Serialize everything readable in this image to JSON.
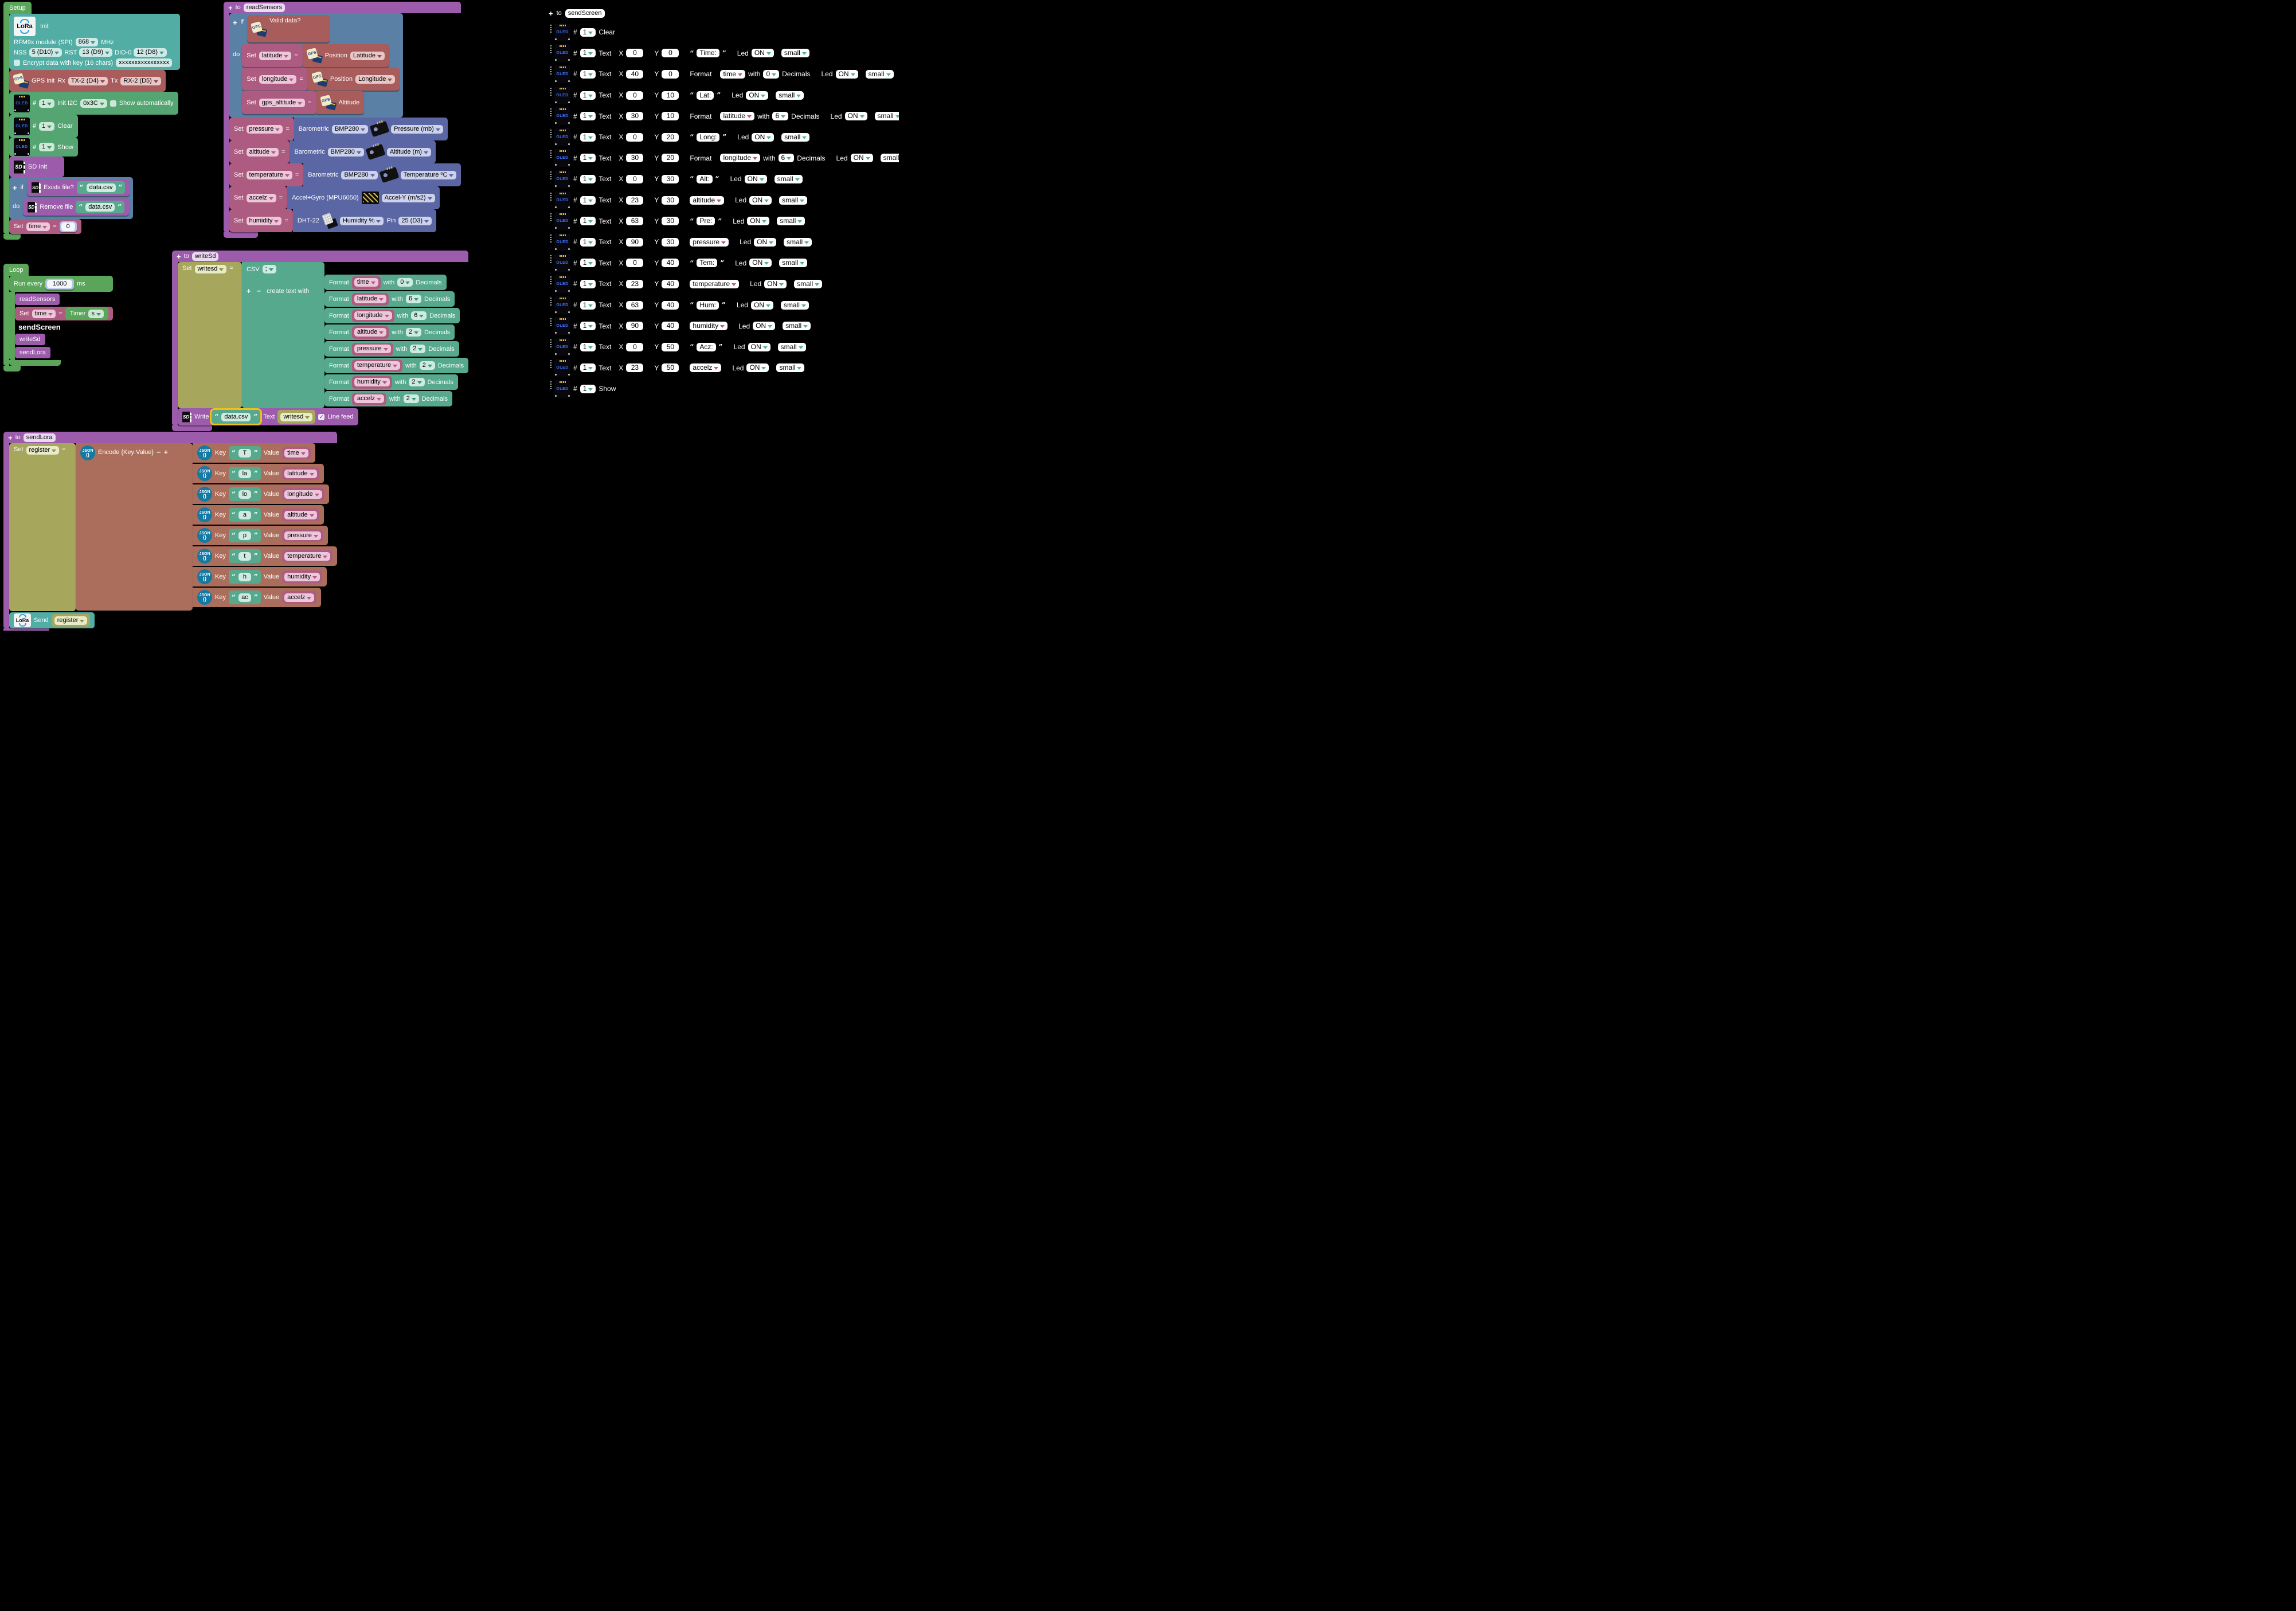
{
  "common": {
    "plus": "+",
    "minus": "−",
    "to": "to",
    "if": "if",
    "do": "do",
    "set": "Set",
    "eq": "=",
    "hash": "#",
    "qo": "“",
    "qc": "”",
    "check": "✓"
  },
  "icons": {
    "lora": "LoRa",
    "oled": "OLED",
    "gps": "GPS",
    "sd": "SD",
    "json_top": "JSON",
    "json_bottom": "{}"
  },
  "setup": {
    "tab": "Setup",
    "lora_init": {
      "title": "Init",
      "module": "RFM9x module (SPI)",
      "freq": "868",
      "freq_unit": "MHz",
      "nss_label": "NSS",
      "nss": "5 (D10)",
      "rst_label": "RST",
      "rst": "13 (D9)",
      "dio_label": "DIO-0",
      "dio": "12 (D8)",
      "encrypt_label": "Encrypt data with key (16 chars)",
      "key": "xxxxxxxxxxxxxxxx"
    },
    "gps_init": {
      "label": "GPS init",
      "rx_label": "Rx",
      "rx": "TX-2 (D4)",
      "tx_label": "Tx",
      "tx": "RX-2 (D5)"
    },
    "oled_init": {
      "num": "1",
      "label": "Init I2C",
      "addr": "0x3C",
      "show_auto": "Show automatically"
    },
    "oled_clear": {
      "num": "1",
      "label": "Clear"
    },
    "oled_show": {
      "num": "1",
      "label": "Show"
    },
    "sd_init_label": "SD Init",
    "exists_label": "Exists file?",
    "exists_file": "data.csv",
    "remove_label": "Remove file",
    "remove_file": "data.csv",
    "set_time": {
      "var": "time",
      "value": "0"
    }
  },
  "loop": {
    "tab": "Loop",
    "run_label": "Run every",
    "interval": "1000",
    "unit": "ms",
    "call_read": "readSensors",
    "call_screen": "sendScreen",
    "call_sd": "writeSd",
    "call_lora": "sendLora",
    "set_time": {
      "var": "time",
      "timer": "Timer",
      "unit": "s"
    }
  },
  "read_sensors": {
    "name": "readSensors",
    "valid_label": "Valid data?",
    "gps_sets": [
      {
        "var": "latitude",
        "src": "Position",
        "opt": "Latitude"
      },
      {
        "var": "longitude",
        "src": "Position",
        "opt": "Longitude"
      },
      {
        "var": "gps_altitude",
        "src": "Altitude",
        "opt": ""
      }
    ],
    "sensor_sets": [
      {
        "var": "pressure",
        "dev": "Barometric",
        "model": "BMP280",
        "opt": "Pressure (mb)",
        "pin_label": "",
        "pin": "",
        "icon": "bmp"
      },
      {
        "var": "altitude",
        "dev": "Barometric",
        "model": "BMP280",
        "opt": "Altitude (m)",
        "pin_label": "",
        "pin": "",
        "icon": "bmp"
      },
      {
        "var": "temperature",
        "dev": "Barometric",
        "model": "BMP280",
        "opt": "Temperature ºC",
        "pin_label": "",
        "pin": "",
        "icon": "bmp"
      },
      {
        "var": "accelz",
        "dev": "Accel+Gyro (MPU6050)",
        "model": "",
        "opt": "Accel-Y (m/s2)",
        "pin_label": "",
        "pin": "",
        "icon": "mpu"
      },
      {
        "var": "humidity",
        "dev": "DHT-22",
        "model": "",
        "opt": "Humidity %",
        "pin_label": "Pin",
        "pin": "25 (D3)",
        "icon": "dht"
      }
    ]
  },
  "write_sd": {
    "name": "writeSd",
    "set_var": "writesd",
    "csv_label": "CSV",
    "csv_sep": ";",
    "create_label": "create text with",
    "format_label": "Format",
    "with_label": "with",
    "decimals_label": "Decimals",
    "formats": [
      {
        "var": "time",
        "dec": "0"
      },
      {
        "var": "latitude",
        "dec": "6"
      },
      {
        "var": "longitude",
        "dec": "6"
      },
      {
        "var": "altitude",
        "dec": "2"
      },
      {
        "var": "pressure",
        "dec": "2"
      },
      {
        "var": "temperature",
        "dec": "2"
      },
      {
        "var": "humidity",
        "dec": "2"
      },
      {
        "var": "accelz",
        "dec": "2"
      }
    ],
    "write_label": "Write",
    "file": "data.csv",
    "text_label": "Text",
    "text_var": "writesd",
    "linefeed_label": "Line feed"
  },
  "send_lora": {
    "name": "sendLora",
    "set_var": "register",
    "encode_label": "Encode {Key:Value}",
    "key_label": "Key",
    "value_label": "Value",
    "pairs": [
      {
        "key": "T",
        "var": "time"
      },
      {
        "key": "la",
        "var": "latitude"
      },
      {
        "key": "lo",
        "var": "longitude"
      },
      {
        "key": "a",
        "var": "altitude"
      },
      {
        "key": "p",
        "var": "pressure"
      },
      {
        "key": "t",
        "var": "temperature"
      },
      {
        "key": "h",
        "var": "humidity"
      },
      {
        "key": "ac",
        "var": "accelz"
      }
    ],
    "send_label": "Send",
    "send_var": "register"
  },
  "send_screen": {
    "name": "sendScreen",
    "labels": {
      "text": "Text",
      "x": "X",
      "y": "Y",
      "led": "Led",
      "on": "ON",
      "size": "small",
      "format": "Format",
      "with": "with",
      "decimals": "Decimals",
      "clear": "Clear",
      "show": "Show"
    },
    "rows": [
      {
        "type": "clear",
        "num": "1",
        "x": "",
        "y": "",
        "str": "",
        "var": "",
        "dec": ""
      },
      {
        "type": "str",
        "num": "1",
        "x": "0",
        "y": "0",
        "str": "Time:",
        "var": "",
        "dec": ""
      },
      {
        "type": "fmt",
        "num": "1",
        "x": "40",
        "y": "0",
        "str": "",
        "var": "time",
        "dec": "0"
      },
      {
        "type": "str",
        "num": "1",
        "x": "0",
        "y": "10",
        "str": "Lat:",
        "var": "",
        "dec": ""
      },
      {
        "type": "fmt",
        "num": "1",
        "x": "30",
        "y": "10",
        "str": "",
        "var": "latitude",
        "dec": "6"
      },
      {
        "type": "str",
        "num": "1",
        "x": "0",
        "y": "20",
        "str": "Long:",
        "var": "",
        "dec": ""
      },
      {
        "type": "fmt",
        "num": "1",
        "x": "30",
        "y": "20",
        "str": "",
        "var": "longitude",
        "dec": "6"
      },
      {
        "type": "str",
        "num": "1",
        "x": "0",
        "y": "30",
        "str": "Alt:",
        "var": "",
        "dec": ""
      },
      {
        "type": "var",
        "num": "1",
        "x": "23",
        "y": "30",
        "str": "",
        "var": "altitude",
        "dec": ""
      },
      {
        "type": "str",
        "num": "1",
        "x": "63",
        "y": "30",
        "str": "Pre:",
        "var": "",
        "dec": ""
      },
      {
        "type": "var",
        "num": "1",
        "x": "90",
        "y": "30",
        "str": "",
        "var": "pressure",
        "dec": ""
      },
      {
        "type": "str",
        "num": "1",
        "x": "0",
        "y": "40",
        "str": "Tem:",
        "var": "",
        "dec": ""
      },
      {
        "type": "var",
        "num": "1",
        "x": "23",
        "y": "40",
        "str": "",
        "var": "temperature",
        "dec": ""
      },
      {
        "type": "str",
        "num": "1",
        "x": "63",
        "y": "40",
        "str": "Hum:",
        "var": "",
        "dec": ""
      },
      {
        "type": "var",
        "num": "1",
        "x": "90",
        "y": "40",
        "str": "",
        "var": "humidity",
        "dec": ""
      },
      {
        "type": "str",
        "num": "1",
        "x": "0",
        "y": "50",
        "str": "Acz:",
        "var": "",
        "dec": ""
      },
      {
        "type": "var",
        "num": "1",
        "x": "23",
        "y": "50",
        "str": "",
        "var": "accelz",
        "dec": ""
      },
      {
        "type": "show",
        "num": "1",
        "x": "",
        "y": "",
        "str": "",
        "var": "",
        "dec": ""
      }
    ]
  }
}
